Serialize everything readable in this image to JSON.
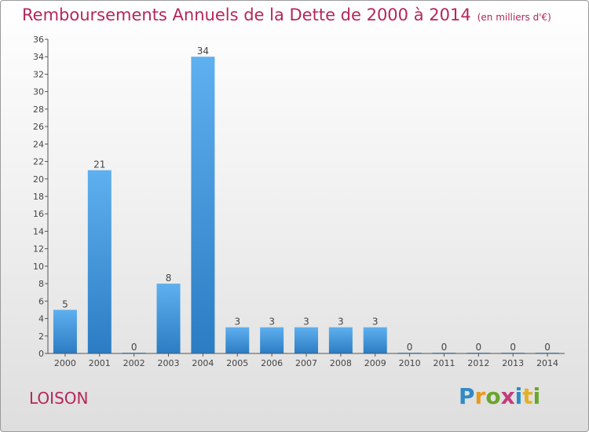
{
  "title": "Remboursements Annuels de la Dette de 2000 à 2014",
  "unit_note": "(en milliers d'€)",
  "commune": "LOISON",
  "logo_text": "Proxiti",
  "colors": {
    "bar": "#3b8fd6",
    "title": "#b5265b",
    "axis": "#444444"
  },
  "chart_data": {
    "type": "bar",
    "title": "Remboursements Annuels de la Dette de 2000 à 2014",
    "xlabel": "",
    "ylabel": "",
    "categories": [
      "2000",
      "2001",
      "2002",
      "2003",
      "2004",
      "2005",
      "2006",
      "2007",
      "2008",
      "2009",
      "2010",
      "2011",
      "2012",
      "2013",
      "2014"
    ],
    "values": [
      5,
      21,
      0,
      8,
      34,
      3,
      3,
      3,
      3,
      3,
      0,
      0,
      0,
      0,
      0
    ],
    "ylim": [
      0,
      36
    ],
    "yticks": [
      0,
      2,
      4,
      6,
      8,
      10,
      12,
      14,
      16,
      18,
      20,
      22,
      24,
      26,
      28,
      30,
      32,
      34,
      36
    ],
    "grid": false,
    "legend": "none"
  }
}
